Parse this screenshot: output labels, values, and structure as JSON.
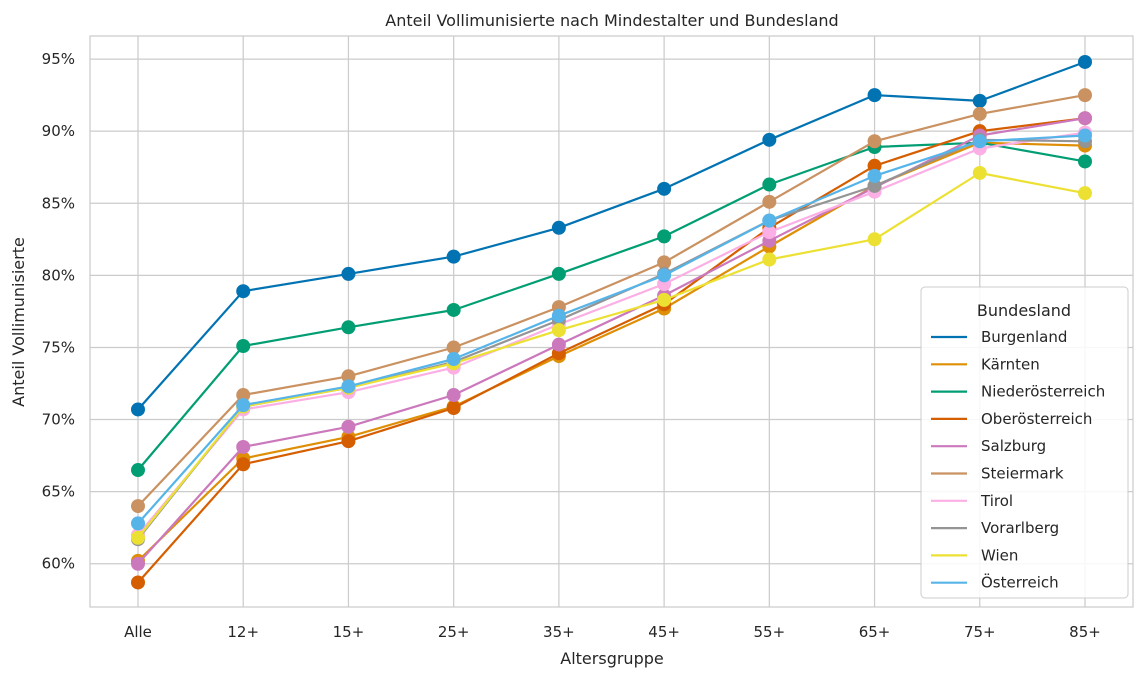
{
  "chart_data": {
    "type": "line",
    "title": "Anteil Vollimunisierte nach Mindestalter und Bundesland",
    "xlabel": "Altersgruppe",
    "ylabel": "Anteil Vollimunisierte",
    "categories": [
      "Alle",
      "12+",
      "15+",
      "25+",
      "35+",
      "45+",
      "55+",
      "65+",
      "75+",
      "85+"
    ],
    "ylim": [
      57,
      96.6
    ],
    "yticks": [
      60,
      65,
      70,
      75,
      80,
      85,
      90,
      95
    ],
    "ytick_labels": [
      "60%",
      "65%",
      "70%",
      "75%",
      "80%",
      "85%",
      "90%",
      "95%"
    ],
    "grid": true,
    "legend": {
      "title": "Bundesland",
      "placement": "lower-right"
    },
    "series": [
      {
        "name": "Burgenland",
        "color": "#0173b2",
        "values": [
          70.7,
          78.9,
          80.1,
          81.3,
          83.3,
          86.0,
          89.4,
          92.5,
          92.1,
          94.8
        ]
      },
      {
        "name": "Kärnten",
        "color": "#de8f05",
        "values": [
          60.2,
          67.3,
          68.8,
          70.9,
          74.4,
          77.7,
          82.0,
          86.2,
          89.2,
          89.0
        ]
      },
      {
        "name": "Niederösterreich",
        "color": "#029e73",
        "values": [
          66.5,
          75.1,
          76.4,
          77.6,
          80.1,
          82.7,
          86.3,
          88.9,
          89.2,
          87.9
        ]
      },
      {
        "name": "Oberösterreich",
        "color": "#d55e00",
        "values": [
          58.7,
          66.9,
          68.5,
          70.8,
          74.6,
          78.0,
          83.3,
          87.6,
          90.0,
          90.9
        ]
      },
      {
        "name": "Salzburg",
        "color": "#cc78bc",
        "values": [
          60.0,
          68.1,
          69.5,
          71.7,
          75.2,
          78.6,
          82.4,
          86.1,
          89.7,
          90.9
        ]
      },
      {
        "name": "Steiermark",
        "color": "#ca9161",
        "values": [
          64.0,
          71.7,
          73.0,
          75.0,
          77.8,
          80.9,
          85.1,
          89.3,
          91.2,
          92.5
        ]
      },
      {
        "name": "Tirol",
        "color": "#fbafe4",
        "values": [
          62.0,
          70.7,
          71.9,
          73.6,
          76.6,
          79.4,
          83.0,
          85.8,
          88.8,
          89.9
        ]
      },
      {
        "name": "Vorarlberg",
        "color": "#949494",
        "values": [
          61.7,
          70.9,
          72.2,
          74.0,
          76.9,
          80.1,
          83.8,
          86.2,
          89.4,
          89.3
        ]
      },
      {
        "name": "Wien",
        "color": "#ece133",
        "values": [
          61.8,
          70.9,
          72.2,
          73.9,
          76.2,
          78.3,
          81.1,
          82.5,
          87.1,
          85.7
        ]
      },
      {
        "name": "Österreich",
        "color": "#56b4e9",
        "values": [
          62.8,
          71.0,
          72.3,
          74.2,
          77.2,
          80.0,
          83.8,
          86.9,
          89.3,
          89.7
        ]
      }
    ]
  }
}
